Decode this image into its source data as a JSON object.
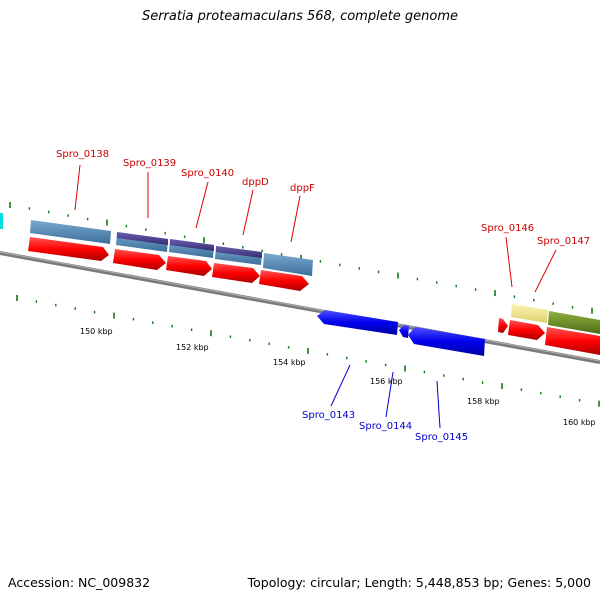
{
  "title": "Serratia proteamaculans 568, complete genome",
  "footer": {
    "accession": "Accession: NC_009832",
    "stats": "Topology: circular; Length: 5,448,853 bp; Genes: 5,000"
  },
  "colors": {
    "backbone": "#808080",
    "forward_cds": "#ff0000",
    "reverse_cds": "#0000ee",
    "forward_label": "#cc0000",
    "reverse_label": "#0000cc",
    "tick": "#117711",
    "steelblue_feature": "#4682b4",
    "purple_feature": "#483d8b",
    "khaki_feature": "#f0e68c",
    "olive_feature": "#6b8e23",
    "cyan_feature": "#00dddd"
  },
  "scale": {
    "labels": [
      "150 kbp",
      "152 kbp",
      "154 kbp",
      "156 kbp",
      "158 kbp",
      "160 kbp"
    ]
  },
  "forward_labels": [
    "Spro_0138",
    "Spro_0139",
    "Spro_0140",
    "dppD",
    "dppF",
    "Spro_0146",
    "Spro_0147"
  ],
  "reverse_labels": [
    "Spro_0143",
    "Spro_0144",
    "Spro_0145"
  ]
}
